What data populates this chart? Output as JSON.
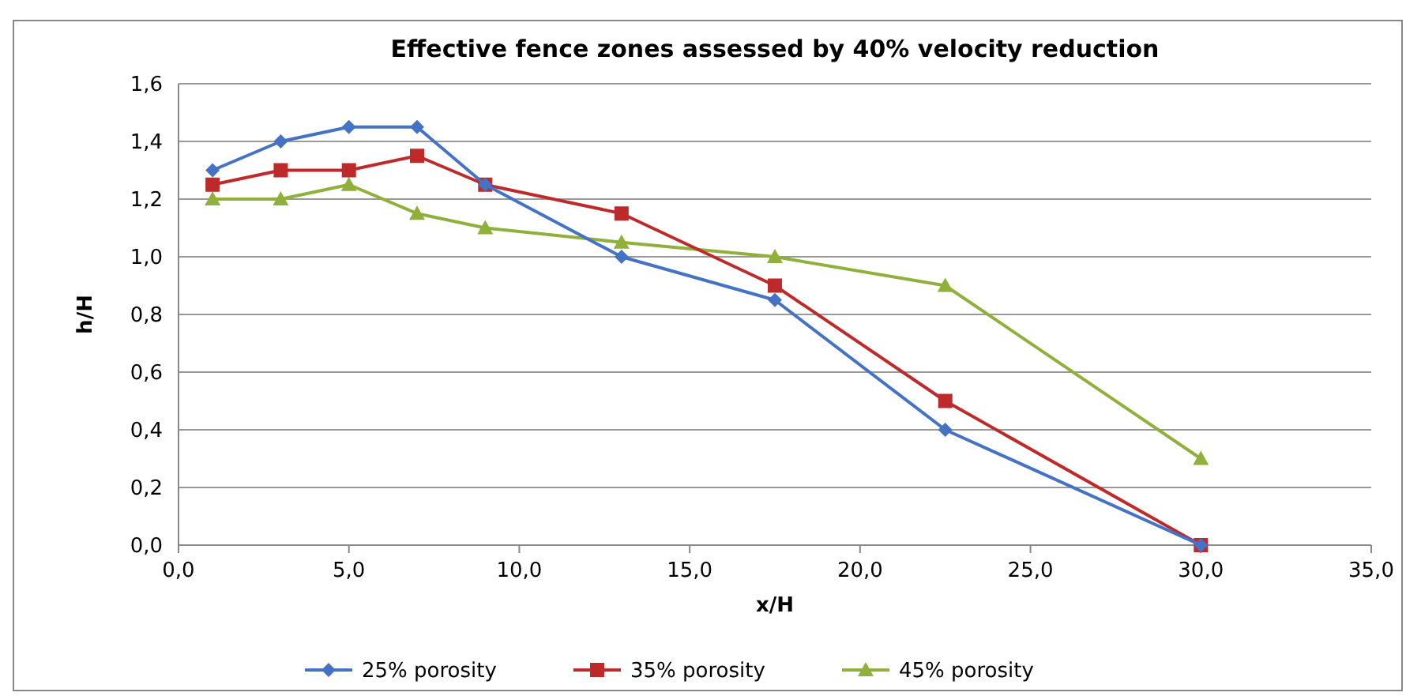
{
  "chart_data": {
    "type": "line",
    "title": "Effective fence zones assessed by 40% velocity reduction",
    "xlabel": "x/H",
    "ylabel": "h/H",
    "x": [
      1,
      3,
      5,
      7,
      9,
      13,
      17.5,
      22.5,
      30
    ],
    "series": [
      {
        "name": "25% porosity",
        "color": "#4472c4",
        "marker": "diamond",
        "values": [
          1.3,
          1.4,
          1.45,
          1.45,
          1.25,
          1.0,
          0.85,
          0.4,
          0
        ]
      },
      {
        "name": "35% porosity",
        "color": "#be2a2a",
        "marker": "square",
        "values": [
          1.25,
          1.3,
          1.3,
          1.35,
          1.25,
          1.15,
          0.9,
          0.5,
          0
        ]
      },
      {
        "name": "45% porosity",
        "color": "#8fb03a",
        "marker": "triangle",
        "values": [
          1.2,
          1.2,
          1.25,
          1.15,
          1.1,
          1.05,
          1.0,
          0.9,
          0.3
        ]
      }
    ],
    "xlim": [
      0,
      35
    ],
    "xticks": [
      {
        "value": 0,
        "label": "0,0"
      },
      {
        "value": 5,
        "label": "5,0"
      },
      {
        "value": 10,
        "label": "10,0"
      },
      {
        "value": 15,
        "label": "15,0"
      },
      {
        "value": 20,
        "label": "20,0"
      },
      {
        "value": 25,
        "label": "25,0"
      },
      {
        "value": 30,
        "label": "30,0"
      },
      {
        "value": 35,
        "label": "35,0"
      }
    ],
    "ylim": [
      0,
      1.6
    ],
    "yticks": [
      {
        "value": 0,
        "label": "0,0"
      },
      {
        "value": 0.2,
        "label": "0,2"
      },
      {
        "value": 0.4,
        "label": "0,4"
      },
      {
        "value": 0.6,
        "label": "0,6"
      },
      {
        "value": 0.8,
        "label": "0,8"
      },
      {
        "value": 1,
        "label": "1,0"
      },
      {
        "value": 1.2,
        "label": "1,2"
      },
      {
        "value": 1.4,
        "label": "1,4"
      },
      {
        "value": 1.6,
        "label": "1,6"
      }
    ],
    "grid": "y",
    "legend": "bottom"
  }
}
